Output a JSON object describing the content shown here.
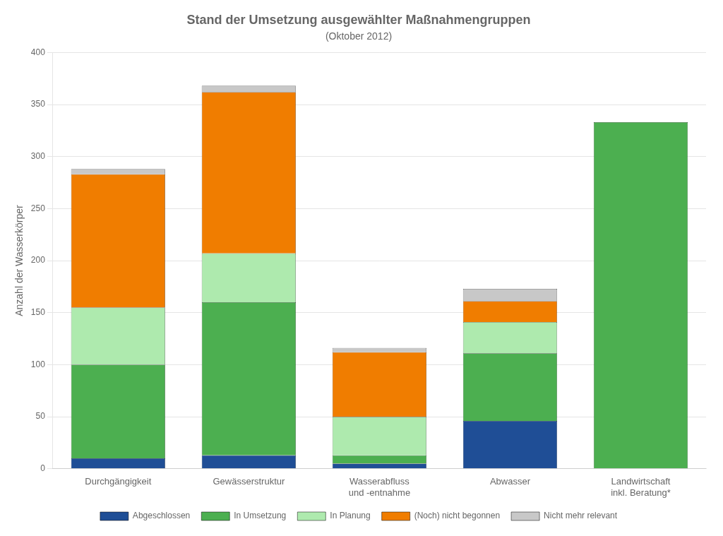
{
  "chart_data": {
    "type": "bar",
    "title": "Stand der Umsetzung ausgewählter Maßnahmengruppen",
    "subtitle": "(Oktober 2012)",
    "ylabel": "Anzahl der Wasserkörper",
    "categories": [
      "Durchgängigkeit",
      "Gewässerstruktur",
      "Wasserabfluss\nund -entnahme",
      "Abwasser",
      "Landwirtschaft\ninkl. Beratung*"
    ],
    "series": [
      {
        "name": "Abgeschlossen",
        "color": "#1F4E96",
        "values": [
          10,
          13,
          5,
          46,
          0
        ]
      },
      {
        "name": "In Umsetzung",
        "color": "#4CAF50",
        "values": [
          90,
          147,
          8,
          65,
          333
        ]
      },
      {
        "name": "In Planung",
        "color": "#AEEAAE",
        "values": [
          55,
          47,
          37,
          30,
          0
        ]
      },
      {
        "name": "(Noch) nicht begonnen",
        "color": "#F07D00",
        "values": [
          128,
          155,
          62,
          20,
          0
        ]
      },
      {
        "name": "Nicht mehr relevant",
        "color": "#C8C8C8",
        "values": [
          5,
          6,
          4,
          12,
          0
        ]
      }
    ],
    "stacked": true,
    "ylim": [
      0,
      400
    ],
    "yticks": [
      0,
      50,
      100,
      150,
      200,
      250,
      300,
      350,
      400
    ],
    "grid": "y",
    "legend": "bottom"
  }
}
